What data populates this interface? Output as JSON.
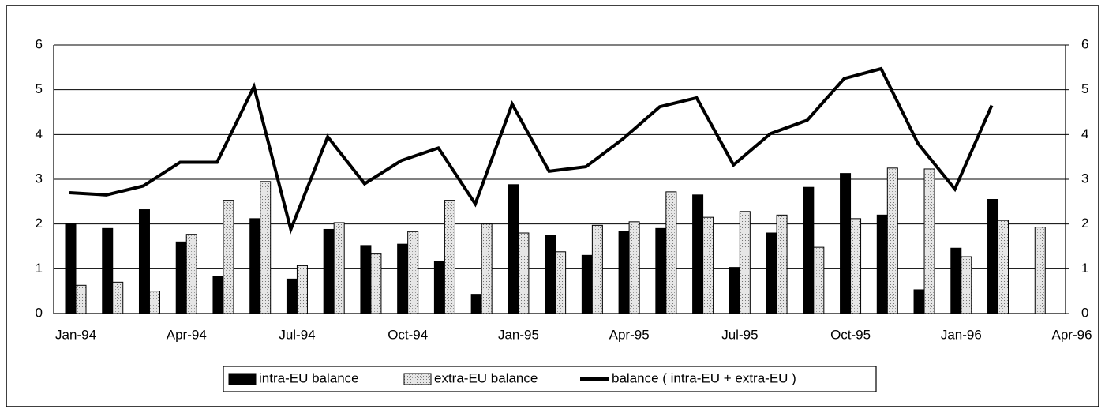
{
  "chart_data": {
    "type": "bar",
    "categories": [
      "Jan-94",
      null,
      null,
      "Apr-94",
      null,
      null,
      "Jul-94",
      null,
      null,
      "Oct-94",
      null,
      null,
      "Jan-95",
      null,
      null,
      "Apr-95",
      null,
      null,
      "Jul-95",
      null,
      null,
      "Oct-95",
      null,
      null,
      "Jan-96",
      null,
      null,
      "Apr-96"
    ],
    "series": [
      {
        "name": "intra-EU balance",
        "type": "bar",
        "color": "#000000",
        "values": [
          2.02,
          1.9,
          2.32,
          1.6,
          0.83,
          2.12,
          0.77,
          1.88,
          1.52,
          1.55,
          1.17,
          0.43,
          2.88,
          1.75,
          1.3,
          1.83,
          1.9,
          2.65,
          1.03,
          1.8,
          2.82,
          3.13,
          2.2,
          0.53,
          1.46,
          2.55,
          null,
          null
        ]
      },
      {
        "name": "extra-EU balance",
        "type": "bar",
        "color": "#d4d4d4",
        "values": [
          0.63,
          0.7,
          0.5,
          1.77,
          2.53,
          2.95,
          1.07,
          2.03,
          1.33,
          1.83,
          2.53,
          2.0,
          1.8,
          1.38,
          1.97,
          2.05,
          2.72,
          2.15,
          2.28,
          2.2,
          1.48,
          2.12,
          3.25,
          3.23,
          1.27,
          2.08,
          1.93,
          null
        ]
      },
      {
        "name": "balance ( intra-EU + extra-EU )",
        "type": "line",
        "color": "#000000",
        "values": [
          2.7,
          2.65,
          2.85,
          3.38,
          3.38,
          5.07,
          1.88,
          3.95,
          2.9,
          3.42,
          3.7,
          2.45,
          4.68,
          3.18,
          3.28,
          3.9,
          4.62,
          4.82,
          3.32,
          4.02,
          4.32,
          5.25,
          5.47,
          3.8,
          2.78,
          4.65,
          null,
          null
        ]
      }
    ],
    "ylim": [
      0,
      6
    ],
    "yticks": [
      0,
      1,
      2,
      3,
      4,
      5,
      6
    ],
    "y2lim": [
      0,
      6
    ],
    "y2ticks": [
      0,
      1,
      2,
      3,
      4,
      5,
      6
    ],
    "grid": true,
    "legend": "bottom"
  }
}
